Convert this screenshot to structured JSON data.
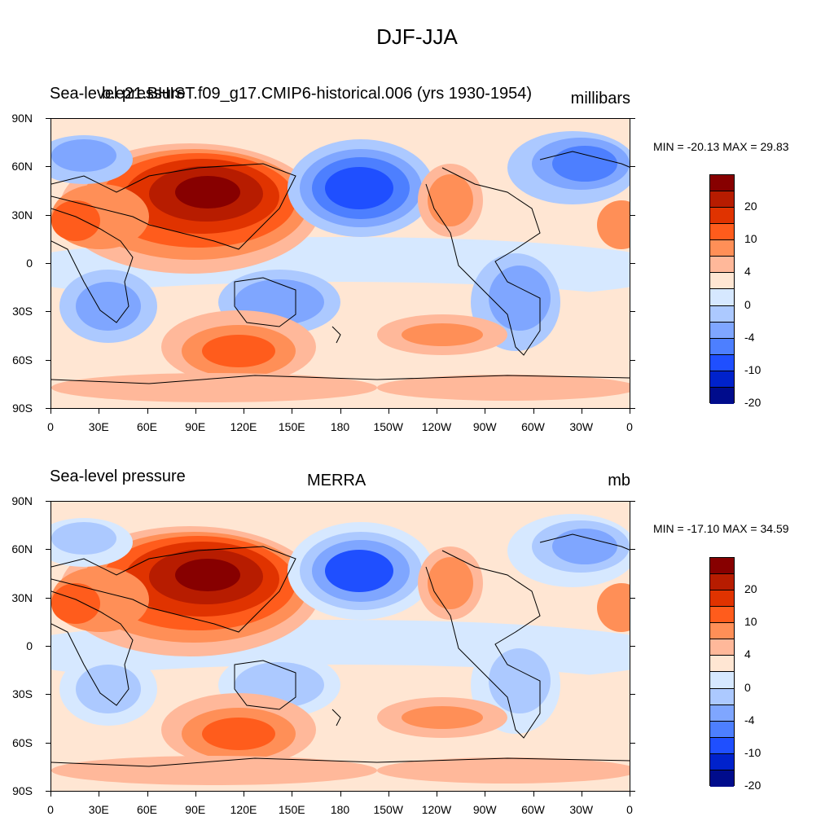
{
  "figure": {
    "title": "DJF-JJA"
  },
  "axes": {
    "lat_labels": [
      "90N",
      "60N",
      "30N",
      "0",
      "30S",
      "60S",
      "90S"
    ],
    "lon_labels": [
      "0",
      "30E",
      "60E",
      "90E",
      "120E",
      "150E",
      "180",
      "150W",
      "120W",
      "90W",
      "60W",
      "30W",
      "0"
    ]
  },
  "colorbar": {
    "colors": [
      "#870000",
      "#b71c00",
      "#e03300",
      "#ff5c1c",
      "#ff8f57",
      "#ffb89a",
      "#ffe6d3",
      "#d6e8ff",
      "#acc9ff",
      "#7fa6ff",
      "#4d7fff",
      "#1f4fff",
      "#0022cc",
      "#000c8c"
    ],
    "labels": [
      "20",
      "10",
      "4",
      "0",
      "-4",
      "-10",
      "-20"
    ]
  },
  "panels": [
    {
      "left_title": "Sea-level pressure",
      "center_title": "b.e21.BHIST.f09_g17.CMIP6-historical.006 (yrs 1930-1954)",
      "right_title": "millibars",
      "stats": "MIN = -20.13 MAX =  29.83"
    },
    {
      "left_title": "Sea-level pressure",
      "center_title": "MERRA",
      "right_title": "mb",
      "stats": "MIN = -17.10 MAX =  34.59"
    }
  ]
}
